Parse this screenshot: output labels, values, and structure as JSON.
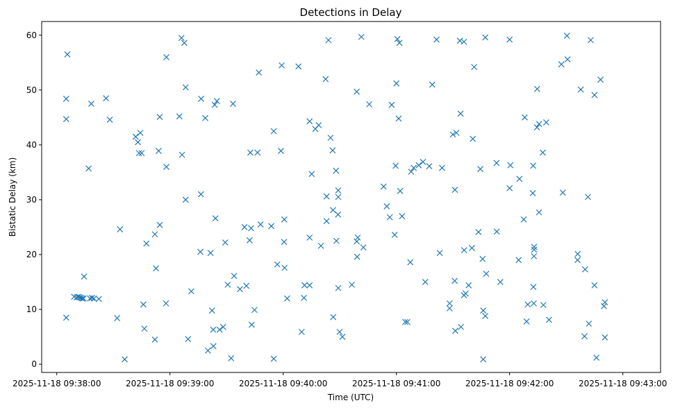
{
  "chart_data": {
    "type": "scatter",
    "title": "Detections in Delay",
    "xlabel": "Time (UTC)",
    "ylabel": "Bistatic Delay (km)",
    "x_unit": "seconds since 2025-11-18 09:38:00 UTC",
    "xlim": [
      -8,
      320
    ],
    "ylim": [
      -1.5,
      62.5
    ],
    "x_ticks": [
      {
        "value": 0,
        "label": "2025-11-18 09:38:00"
      },
      {
        "value": 60,
        "label": "2025-11-18 09:39:00"
      },
      {
        "value": 120,
        "label": "2025-11-18 09:40:00"
      },
      {
        "value": 180,
        "label": "2025-11-18 09:41:00"
      },
      {
        "value": 240,
        "label": "2025-11-18 09:42:00"
      },
      {
        "value": 300,
        "label": "2025-11-18 09:43:00"
      }
    ],
    "y_ticks": [
      {
        "value": 0,
        "label": "0"
      },
      {
        "value": 10,
        "label": "10"
      },
      {
        "value": 20,
        "label": "20"
      },
      {
        "value": 30,
        "label": "30"
      },
      {
        "value": 40,
        "label": "40"
      },
      {
        "value": 50,
        "label": "50"
      },
      {
        "value": 60,
        "label": "60"
      }
    ],
    "marker": "x",
    "color": "#1f77b4",
    "series": [
      {
        "name": "detections",
        "points": [
          [
            5.6,
            56.5
          ],
          [
            5.0,
            48.4
          ],
          [
            5.0,
            44.7
          ],
          [
            5.0,
            8.5
          ],
          [
            9.2,
            12.3
          ],
          [
            10.6,
            12.2
          ],
          [
            11.4,
            12.3
          ],
          [
            12.1,
            12.2
          ],
          [
            12.8,
            12.1
          ],
          [
            13.5,
            12.0
          ],
          [
            14.5,
            16.0
          ],
          [
            14.2,
            12.0
          ],
          [
            17.6,
            12.0
          ],
          [
            18.6,
            12.1
          ],
          [
            19.6,
            12.0
          ],
          [
            22.3,
            11.9
          ],
          [
            16.9,
            35.7
          ],
          [
            18.3,
            47.5
          ],
          [
            26.1,
            48.5
          ],
          [
            28.1,
            44.6
          ],
          [
            32.0,
            8.4
          ],
          [
            33.5,
            24.6
          ],
          [
            36.0,
            0.9
          ],
          [
            41.8,
            41.5
          ],
          [
            43.0,
            40.5
          ],
          [
            43.6,
            38.5
          ],
          [
            44.3,
            42.2
          ],
          [
            45.0,
            38.5
          ],
          [
            45.9,
            10.9
          ],
          [
            46.4,
            6.5
          ],
          [
            47.5,
            22.0
          ],
          [
            52.0,
            23.7
          ],
          [
            52.6,
            17.5
          ],
          [
            52.0,
            4.5
          ],
          [
            54.0,
            38.9
          ],
          [
            54.6,
            45.1
          ],
          [
            54.6,
            25.4
          ],
          [
            58.1,
            56.0
          ],
          [
            58.1,
            36.0
          ],
          [
            57.9,
            11.1
          ],
          [
            65.0,
            45.2
          ],
          [
            66.1,
            59.5
          ],
          [
            66.4,
            38.2
          ],
          [
            67.6,
            58.6
          ],
          [
            68.3,
            50.5
          ],
          [
            68.3,
            30.0
          ],
          [
            69.6,
            4.6
          ],
          [
            71.3,
            13.3
          ],
          [
            76.1,
            20.5
          ],
          [
            76.4,
            31.0
          ],
          [
            76.5,
            48.4
          ],
          [
            78.7,
            44.9
          ],
          [
            80.1,
            2.5
          ],
          [
            81.5,
            20.3
          ],
          [
            82.3,
            9.8
          ],
          [
            82.9,
            6.3
          ],
          [
            83.0,
            3.3
          ],
          [
            83.7,
            47.3
          ],
          [
            84.1,
            26.6
          ],
          [
            84.9,
            48.0
          ],
          [
            86.3,
            6.3
          ],
          [
            88.2,
            6.8
          ],
          [
            89.3,
            22.2
          ],
          [
            90.6,
            14.5
          ],
          [
            92.4,
            1.1
          ],
          [
            93.4,
            47.5
          ],
          [
            94.0,
            16.1
          ],
          [
            97.1,
            13.7
          ],
          [
            99.5,
            25.0
          ],
          [
            100.5,
            14.3
          ],
          [
            102.6,
            38.6
          ],
          [
            102.2,
            22.6
          ],
          [
            103.0,
            24.8
          ],
          [
            103.3,
            7.2
          ],
          [
            104.8,
            9.9
          ],
          [
            106.4,
            38.6
          ],
          [
            107.1,
            53.2
          ],
          [
            108.0,
            25.5
          ],
          [
            113.7,
            25.2
          ],
          [
            115.0,
            42.5
          ],
          [
            115.0,
            1.0
          ],
          [
            116.9,
            18.2
          ],
          [
            118.8,
            38.9
          ],
          [
            119.2,
            54.5
          ],
          [
            120.7,
            17.6
          ],
          [
            120.6,
            26.4
          ],
          [
            120.5,
            22.3
          ],
          [
            122.1,
            12.0
          ],
          [
            128.1,
            54.3
          ],
          [
            129.8,
            5.9
          ],
          [
            131.0,
            12.1
          ],
          [
            131.3,
            14.4
          ],
          [
            134.0,
            44.3
          ],
          [
            134.0,
            23.1
          ],
          [
            134.0,
            14.4
          ],
          [
            135.1,
            34.7
          ],
          [
            137.0,
            42.9
          ],
          [
            138.8,
            43.6
          ],
          [
            140.0,
            21.6
          ],
          [
            142.5,
            52.0
          ],
          [
            143.0,
            30.6
          ],
          [
            143.0,
            26.1
          ],
          [
            144.0,
            59.1
          ],
          [
            145.1,
            41.3
          ],
          [
            146.2,
            39.0
          ],
          [
            146.4,
            28.1
          ],
          [
            146.5,
            8.6
          ],
          [
            148.0,
            35.3
          ],
          [
            148.2,
            22.5
          ],
          [
            149.1,
            27.3
          ],
          [
            149.2,
            31.7
          ],
          [
            149.2,
            30.5
          ],
          [
            149.2,
            13.9
          ],
          [
            149.9,
            5.9
          ],
          [
            151.4,
            5.0
          ],
          [
            156.4,
            14.5
          ],
          [
            159.0,
            49.7
          ],
          [
            159.0,
            22.4
          ],
          [
            159.2,
            19.6
          ],
          [
            159.5,
            23.1
          ],
          [
            161.4,
            59.7
          ],
          [
            162.5,
            21.3
          ],
          [
            165.6,
            47.4
          ],
          [
            173.2,
            32.4
          ],
          [
            174.9,
            28.8
          ],
          [
            176.5,
            26.8
          ],
          [
            177.5,
            47.3
          ],
          [
            179.6,
            36.2
          ],
          [
            179.1,
            23.6
          ],
          [
            180.0,
            51.2
          ],
          [
            180.5,
            59.3
          ],
          [
            181.2,
            44.8
          ],
          [
            181.6,
            58.6
          ],
          [
            182.0,
            31.6
          ],
          [
            183.0,
            27.0
          ],
          [
            184.7,
            7.7
          ],
          [
            185.8,
            7.7
          ],
          [
            187.4,
            18.6
          ],
          [
            187.8,
            35.1
          ],
          [
            189.2,
            35.8
          ],
          [
            191.8,
            36.3
          ],
          [
            194.1,
            36.9
          ],
          [
            195.3,
            15.0
          ],
          [
            197.4,
            36.1
          ],
          [
            199.0,
            51.0
          ],
          [
            201.3,
            59.2
          ],
          [
            203.0,
            20.3
          ],
          [
            204.2,
            35.8
          ],
          [
            208.2,
            11.1
          ],
          [
            208.2,
            10.2
          ],
          [
            209.9,
            41.9
          ],
          [
            211.0,
            31.8
          ],
          [
            210.9,
            15.2
          ],
          [
            211.2,
            6.1
          ],
          [
            211.8,
            42.2
          ],
          [
            213.6,
            59.0
          ],
          [
            214.0,
            45.7
          ],
          [
            214.2,
            6.8
          ],
          [
            215.8,
            58.8
          ],
          [
            215.9,
            20.8
          ],
          [
            215.8,
            12.6
          ],
          [
            216.7,
            12.9
          ],
          [
            218.3,
            14.4
          ],
          [
            220.0,
            21.2
          ],
          [
            220.5,
            41.1
          ],
          [
            221.2,
            54.2
          ],
          [
            223.5,
            24.1
          ],
          [
            224.5,
            35.6
          ],
          [
            225.7,
            19.2
          ],
          [
            226.0,
            9.8
          ],
          [
            226.0,
            0.9
          ],
          [
            227.1,
            59.6
          ],
          [
            227.1,
            8.8
          ],
          [
            227.6,
            16.5
          ],
          [
            233.1,
            36.7
          ],
          [
            233.2,
            24.2
          ],
          [
            235.1,
            15.0
          ],
          [
            240.0,
            59.2
          ],
          [
            240.4,
            36.3
          ],
          [
            240.0,
            32.1
          ],
          [
            244.8,
            19.0
          ],
          [
            245.2,
            33.8
          ],
          [
            247.5,
            26.4
          ],
          [
            248.0,
            45.0
          ],
          [
            249.0,
            7.8
          ],
          [
            249.6,
            10.9
          ],
          [
            252.5,
            36.2
          ],
          [
            252.3,
            31.2
          ],
          [
            253.0,
            21.4
          ],
          [
            253.0,
            20.9
          ],
          [
            252.9,
            19.7
          ],
          [
            252.6,
            14.1
          ],
          [
            252.8,
            11.1
          ],
          [
            254.5,
            43.2
          ],
          [
            254.6,
            50.2
          ],
          [
            255.6,
            43.8
          ],
          [
            255.6,
            27.7
          ],
          [
            257.6,
            38.6
          ],
          [
            257.9,
            10.8
          ],
          [
            259.4,
            44.1
          ],
          [
            260.9,
            8.1
          ],
          [
            267.4,
            54.7
          ],
          [
            268.2,
            31.3
          ],
          [
            270.4,
            59.9
          ],
          [
            270.7,
            55.6
          ],
          [
            277.7,
            50.1
          ],
          [
            276.1,
            20.1
          ],
          [
            276.0,
            19.0
          ],
          [
            280.0,
            17.3
          ],
          [
            279.7,
            5.1
          ],
          [
            281.5,
            30.5
          ],
          [
            282.0,
            7.4
          ],
          [
            283.0,
            59.1
          ],
          [
            285.0,
            49.1
          ],
          [
            285.0,
            14.4
          ],
          [
            286.0,
            1.2
          ],
          [
            288.2,
            51.9
          ],
          [
            290.0,
            10.6
          ],
          [
            290.5,
            11.3
          ],
          [
            290.5,
            4.9
          ]
        ]
      }
    ]
  }
}
